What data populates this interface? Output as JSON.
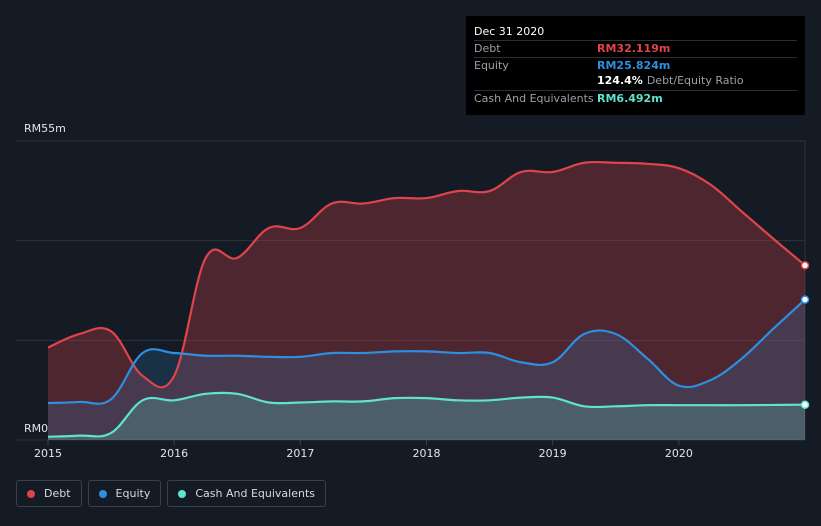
{
  "tooltip": {
    "date": "Dec 31 2020",
    "debt_label": "Debt",
    "debt_value": "RM32.119m",
    "equity_label": "Equity",
    "equity_value": "RM25.824m",
    "ratio_value": "124.4%",
    "ratio_label": "Debt/Equity Ratio",
    "cash_label": "Cash And Equivalents",
    "cash_value": "RM6.492m"
  },
  "legend": {
    "debt": "Debt",
    "equity": "Equity",
    "cash": "Cash And Equivalents"
  },
  "colors": {
    "debt": "#e0434b",
    "equity": "#2e8fe0",
    "cash": "#5fe3cf",
    "background": "#151b24"
  },
  "chart_data": {
    "type": "area",
    "title": "",
    "xlabel": "",
    "ylabel": "",
    "ylim": [
      0,
      55
    ],
    "y_tick_labels": [
      "RM0",
      "RM55m"
    ],
    "x_tick_labels": [
      "2015",
      "2016",
      "2017",
      "2018",
      "2019",
      "2020"
    ],
    "x_ticks": [
      2015,
      2016,
      2017,
      2018,
      2019,
      2020
    ],
    "grid": true,
    "legend_position": "bottom-left",
    "series": [
      {
        "name": "Debt",
        "x": [
          2015.0,
          2015.25,
          2015.5,
          2015.75,
          2016.0,
          2016.25,
          2016.5,
          2016.75,
          2017.0,
          2017.25,
          2017.5,
          2017.75,
          2018.0,
          2018.25,
          2018.5,
          2018.75,
          2019.0,
          2019.25,
          2019.5,
          2019.75,
          2020.0,
          2020.25,
          2020.5,
          2020.75,
          2021.0
        ],
        "values": [
          17.0,
          19.5,
          20.0,
          11.8,
          11.8,
          33.5,
          33.5,
          39.0,
          39.0,
          43.5,
          43.5,
          44.5,
          44.5,
          45.8,
          45.8,
          49.3,
          49.3,
          51.0,
          51.0,
          50.8,
          50.0,
          47.0,
          42.0,
          37.0,
          32.119
        ]
      },
      {
        "name": "Equity",
        "x": [
          2015.0,
          2015.25,
          2015.5,
          2015.75,
          2016.0,
          2016.25,
          2016.5,
          2016.75,
          2017.0,
          2017.25,
          2017.5,
          2017.75,
          2018.0,
          2018.25,
          2018.5,
          2018.75,
          2019.0,
          2019.25,
          2019.5,
          2019.75,
          2020.0,
          2020.25,
          2020.5,
          2020.75,
          2021.0
        ],
        "values": [
          6.8,
          7.0,
          7.5,
          16.0,
          16.0,
          15.5,
          15.5,
          15.3,
          15.3,
          16.0,
          16.0,
          16.3,
          16.3,
          16.0,
          16.0,
          14.3,
          14.3,
          19.5,
          19.5,
          15.0,
          10.0,
          11.0,
          15.0,
          20.5,
          25.824
        ]
      },
      {
        "name": "Cash And Equivalents",
        "x": [
          2015.0,
          2015.25,
          2015.5,
          2015.75,
          2016.0,
          2016.25,
          2016.5,
          2016.75,
          2017.0,
          2017.25,
          2017.5,
          2017.75,
          2018.0,
          2018.25,
          2018.5,
          2018.75,
          2019.0,
          2019.25,
          2019.5,
          2019.75,
          2020.0,
          2020.25,
          2020.5,
          2020.75,
          2021.0
        ],
        "values": [
          0.6,
          0.8,
          1.3,
          7.3,
          7.3,
          8.5,
          8.5,
          6.9,
          6.9,
          7.1,
          7.1,
          7.7,
          7.7,
          7.3,
          7.3,
          7.8,
          7.8,
          6.2,
          6.2,
          6.4,
          6.4,
          6.4,
          6.4,
          6.45,
          6.492
        ]
      }
    ]
  }
}
